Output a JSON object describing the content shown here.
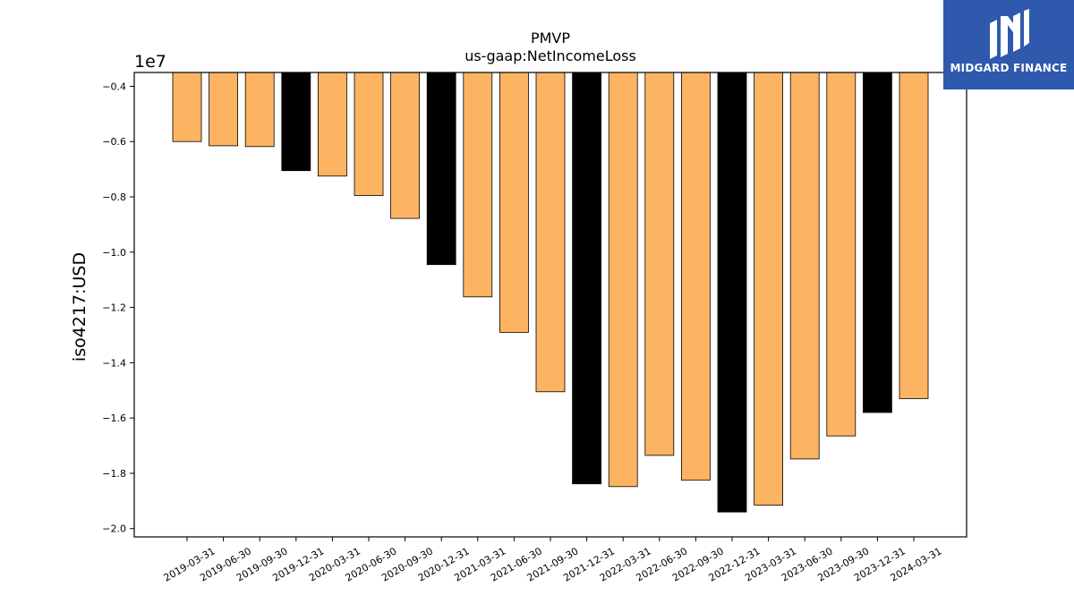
{
  "chart_data": {
    "type": "bar",
    "title": "PMVP",
    "subtitle": "us-gaap:NetIncomeLoss",
    "ylabel": "iso4217:USD",
    "xlabel": "",
    "offset_label": "1e7",
    "ylim": [
      -20.3,
      -3.5
    ],
    "yticks": [
      -0.4,
      -0.6,
      -0.8,
      -1.0,
      -1.2,
      -1.4,
      -1.6,
      -1.8,
      -2.0
    ],
    "ytick_labels": [
      "−0.4",
      "−0.6",
      "−0.8",
      "−1.0",
      "−1.2",
      "−1.4",
      "−1.6",
      "−1.8",
      "−2.0"
    ],
    "categories": [
      "2019-03-31",
      "2019-06-30",
      "2019-09-30",
      "2019-12-31",
      "2020-03-31",
      "2020-06-30",
      "2020-09-30",
      "2020-12-31",
      "2021-03-31",
      "2021-06-30",
      "2021-09-30",
      "2021-12-31",
      "2022-03-31",
      "2022-06-30",
      "2022-09-30",
      "2022-12-31",
      "2023-03-31",
      "2023-06-30",
      "2023-09-30",
      "2023-12-31",
      "2024-03-31"
    ],
    "values": [
      -6.0,
      -6.15,
      -6.18,
      -7.05,
      -7.25,
      -7.95,
      -8.78,
      -10.45,
      -11.62,
      -12.9,
      -15.05,
      -18.38,
      -18.48,
      -17.35,
      -18.25,
      -19.4,
      -19.15,
      -17.48,
      -16.65,
      -15.8,
      -15.3
    ],
    "value_scale": 1000000.0,
    "colors": [
      "#fdb462",
      "#fdb462",
      "#fdb462",
      "#000000",
      "#fdb462",
      "#fdb462",
      "#fdb462",
      "#000000",
      "#fdb462",
      "#fdb462",
      "#fdb462",
      "#000000",
      "#fdb462",
      "#fdb462",
      "#fdb462",
      "#000000",
      "#fdb462",
      "#fdb462",
      "#fdb462",
      "#000000",
      "#fdb462"
    ],
    "grid": false,
    "legend": "none"
  },
  "logo": {
    "text": "MIDGARD FINANCE",
    "background": "#2e59ad"
  }
}
